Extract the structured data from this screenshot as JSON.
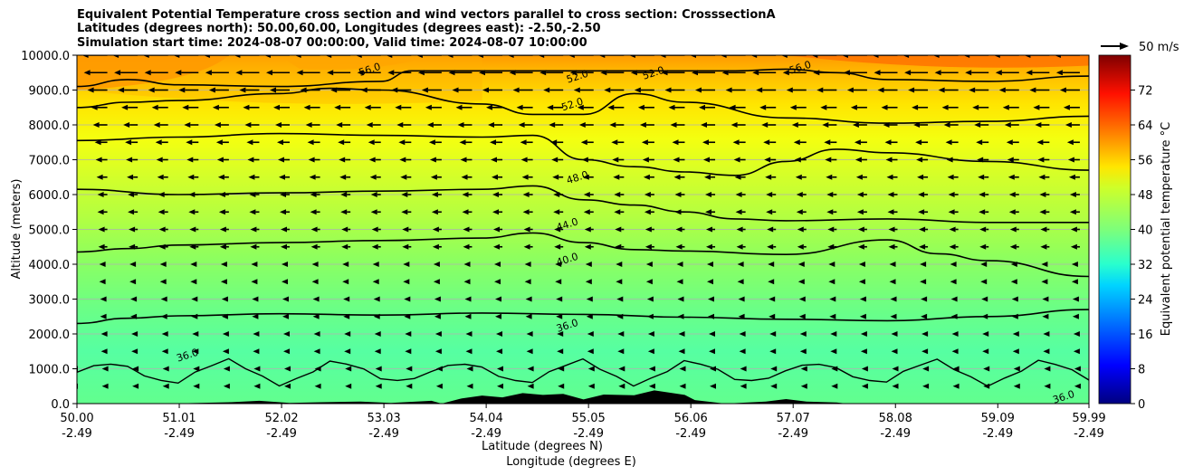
{
  "title": {
    "line1": "Equivalent Potential Temperature cross section and wind vectors parallel to cross section: CrosssectionA",
    "line2": "Latitudes (degrees north): 50.00,60.00, Longitudes (degrees east): -2.50,-2.50",
    "line3": "Simulation start time: 2024-08-07 00:00:00, Valid time: 2024-08-07 10:00:00"
  },
  "chart_data": {
    "type": "heatmap",
    "title": "Equivalent Potential Temperature cross section and wind vectors parallel to cross section: CrosssectionA",
    "xlabel": "Latitude (degrees N)",
    "xlabel2": "Longitude (degrees E)",
    "ylabel": "Altitude (meters)",
    "xlim": [
      50.0,
      59.99
    ],
    "ylim": [
      0,
      10000
    ],
    "x_ticks": [
      50.0,
      51.01,
      52.02,
      53.03,
      54.04,
      55.05,
      56.06,
      57.07,
      58.08,
      59.09,
      59.99
    ],
    "x_tick_labels": [
      "50.00",
      "51.01",
      "52.02",
      "53.03",
      "54.04",
      "55.05",
      "56.06",
      "57.07",
      "58.08",
      "59.09",
      "59.99"
    ],
    "x_tick_labels2": [
      "-2.49",
      "-2.49",
      "-2.49",
      "-2.49",
      "-2.49",
      "-2.49",
      "-2.49",
      "-2.49",
      "-2.49",
      "-2.49",
      "-2.49"
    ],
    "y_ticks": [
      0,
      1000,
      2000,
      3000,
      4000,
      5000,
      6000,
      7000,
      8000,
      9000,
      10000
    ],
    "y_tick_labels": [
      "0.0",
      "1000.0",
      "2000.0",
      "3000.0",
      "4000.0",
      "5000.0",
      "6000.0",
      "7000.0",
      "8000.0",
      "9000.0",
      "10000.0"
    ],
    "grid": true,
    "colorbar": {
      "label": "Equivalent potential temperature  °C",
      "min": 0,
      "max": 80,
      "ticks": [
        0,
        8,
        16,
        24,
        32,
        40,
        48,
        56,
        64,
        72
      ],
      "tick_labels": [
        "0",
        "8",
        "16",
        "24",
        "32",
        "40",
        "48",
        "56",
        "64",
        "72"
      ]
    },
    "quiver_key": {
      "label": "50 m/s",
      "speed": 50
    },
    "contours": [
      {
        "level": 36.0,
        "label": "36.0",
        "points": [
          [
            50.0,
            2300
          ],
          [
            50.5,
            2450
          ],
          [
            51.0,
            2520
          ],
          [
            52.0,
            2580
          ],
          [
            53.0,
            2540
          ],
          [
            54.0,
            2600
          ],
          [
            55.0,
            2560
          ],
          [
            56.0,
            2480
          ],
          [
            57.0,
            2420
          ],
          [
            58.0,
            2380
          ],
          [
            59.0,
            2500
          ],
          [
            59.99,
            2700
          ]
        ]
      },
      {
        "level": 40.0,
        "label": "40.0",
        "points": [
          [
            50.0,
            4350
          ],
          [
            50.5,
            4450
          ],
          [
            51.0,
            4550
          ],
          [
            52.0,
            4620
          ],
          [
            53.0,
            4680
          ],
          [
            54.0,
            4750
          ],
          [
            54.5,
            4900
          ],
          [
            55.0,
            4620
          ],
          [
            55.5,
            4420
          ],
          [
            56.0,
            4380
          ],
          [
            57.0,
            4280
          ],
          [
            58.0,
            4700
          ],
          [
            58.5,
            4300
          ],
          [
            59.0,
            4100
          ],
          [
            59.99,
            3650
          ]
        ]
      },
      {
        "level": 44.0,
        "label": "44.0",
        "points": [
          [
            50.0,
            6150
          ],
          [
            51.0,
            6000
          ],
          [
            52.0,
            6050
          ],
          [
            53.0,
            6100
          ],
          [
            54.0,
            6150
          ],
          [
            54.5,
            6250
          ],
          [
            55.0,
            5850
          ],
          [
            55.5,
            5700
          ],
          [
            56.0,
            5500
          ],
          [
            56.5,
            5300
          ],
          [
            57.0,
            5250
          ],
          [
            58.0,
            5300
          ],
          [
            59.0,
            5200
          ],
          [
            59.99,
            5200
          ]
        ]
      },
      {
        "level": 48.0,
        "label": "48.0",
        "points": [
          [
            50.0,
            7550
          ],
          [
            51.0,
            7650
          ],
          [
            52.0,
            7750
          ],
          [
            53.0,
            7700
          ],
          [
            54.0,
            7650
          ],
          [
            54.5,
            7700
          ],
          [
            55.0,
            7000
          ],
          [
            55.5,
            6800
          ],
          [
            56.0,
            6650
          ],
          [
            56.5,
            6550
          ],
          [
            57.0,
            6950
          ],
          [
            57.5,
            7300
          ],
          [
            58.0,
            7200
          ],
          [
            59.0,
            6950
          ],
          [
            59.99,
            6700
          ]
        ]
      },
      {
        "level": 52.0,
        "label": "52.0",
        "points": [
          [
            50.0,
            8500
          ],
          [
            50.5,
            8650
          ],
          [
            51.0,
            8700
          ],
          [
            52.0,
            8900
          ],
          [
            52.5,
            9050
          ],
          [
            53.0,
            9000
          ],
          [
            54.0,
            8600
          ],
          [
            54.5,
            8300
          ],
          [
            55.0,
            8300
          ],
          [
            55.5,
            8900
          ],
          [
            56.0,
            8650
          ],
          [
            57.0,
            8200
          ],
          [
            58.0,
            8050
          ],
          [
            59.0,
            8100
          ],
          [
            59.99,
            8250
          ]
        ]
      },
      {
        "level": 56.0,
        "label": "56.0",
        "points": [
          [
            50.0,
            9100
          ],
          [
            50.5,
            9300
          ],
          [
            51.0,
            9150
          ],
          [
            52.0,
            9100
          ],
          [
            53.0,
            9250
          ],
          [
            53.3,
            9550
          ],
          [
            56.5,
            9550
          ],
          [
            57.0,
            9600
          ],
          [
            57.5,
            9500
          ],
          [
            58.0,
            9300
          ],
          [
            59.0,
            9250
          ],
          [
            59.99,
            9400
          ]
        ]
      }
    ],
    "contour_labels": [
      {
        "text": "56.0",
        "x": 52.9,
        "y": 9500
      },
      {
        "text": "52.0",
        "x": 54.95,
        "y": 9300
      },
      {
        "text": "52.0",
        "x": 55.7,
        "y": 9400
      },
      {
        "text": "56.0",
        "x": 57.15,
        "y": 9560
      },
      {
        "text": "52.0",
        "x": 54.9,
        "y": 8500
      },
      {
        "text": "48.0",
        "x": 54.95,
        "y": 6400
      },
      {
        "text": "44.0",
        "x": 54.85,
        "y": 5050
      },
      {
        "text": "40.0",
        "x": 54.85,
        "y": 4050
      },
      {
        "text": "36.0",
        "x": 54.85,
        "y": 2150
      },
      {
        "text": "36.0",
        "x": 51.1,
        "y": 1300
      },
      {
        "text": "36.0",
        "x": 59.75,
        "y": 100
      }
    ],
    "wind": {
      "direction": "southward (toward lower latitude)",
      "x_columns": [
        50.0,
        50.3,
        50.6,
        50.9,
        51.2,
        51.5,
        51.8,
        52.1,
        52.4,
        52.7,
        53.0,
        53.3,
        53.6,
        53.9,
        54.2,
        54.5,
        54.8,
        55.1,
        55.4,
        55.7,
        56.0,
        56.3,
        56.6,
        56.9,
        57.2,
        57.5,
        57.8,
        58.1,
        58.4,
        58.7,
        59.0,
        59.3,
        59.6,
        59.9
      ],
      "levels": [
        500,
        1000,
        1500,
        2000,
        2500,
        3000,
        3500,
        4000,
        4500,
        5000,
        5500,
        6000,
        6500,
        7000,
        7500,
        8000,
        8500,
        9000,
        9500,
        10000
      ],
      "speed_by_level": [
        6,
        6,
        7,
        7,
        8,
        8,
        9,
        9,
        10,
        10,
        11,
        11,
        12,
        13,
        14,
        16,
        18,
        22,
        26,
        28
      ]
    },
    "terrain": [
      [
        50.0,
        0
      ],
      [
        50.9,
        0
      ],
      [
        51.2,
        20
      ],
      [
        51.5,
        40
      ],
      [
        51.8,
        80
      ],
      [
        52.1,
        20
      ],
      [
        52.4,
        40
      ],
      [
        52.8,
        60
      ],
      [
        53.1,
        20
      ],
      [
        53.5,
        80
      ],
      [
        53.6,
        0
      ],
      [
        53.8,
        150
      ],
      [
        54.0,
        230
      ],
      [
        54.2,
        180
      ],
      [
        54.4,
        300
      ],
      [
        54.6,
        250
      ],
      [
        54.8,
        280
      ],
      [
        55.0,
        120
      ],
      [
        55.2,
        260
      ],
      [
        55.5,
        240
      ],
      [
        55.7,
        380
      ],
      [
        56.0,
        250
      ],
      [
        56.1,
        100
      ],
      [
        56.4,
        0
      ],
      [
        56.8,
        60
      ],
      [
        57.0,
        130
      ],
      [
        57.2,
        60
      ],
      [
        57.5,
        30
      ],
      [
        57.6,
        0
      ],
      [
        59.99,
        0
      ]
    ]
  }
}
